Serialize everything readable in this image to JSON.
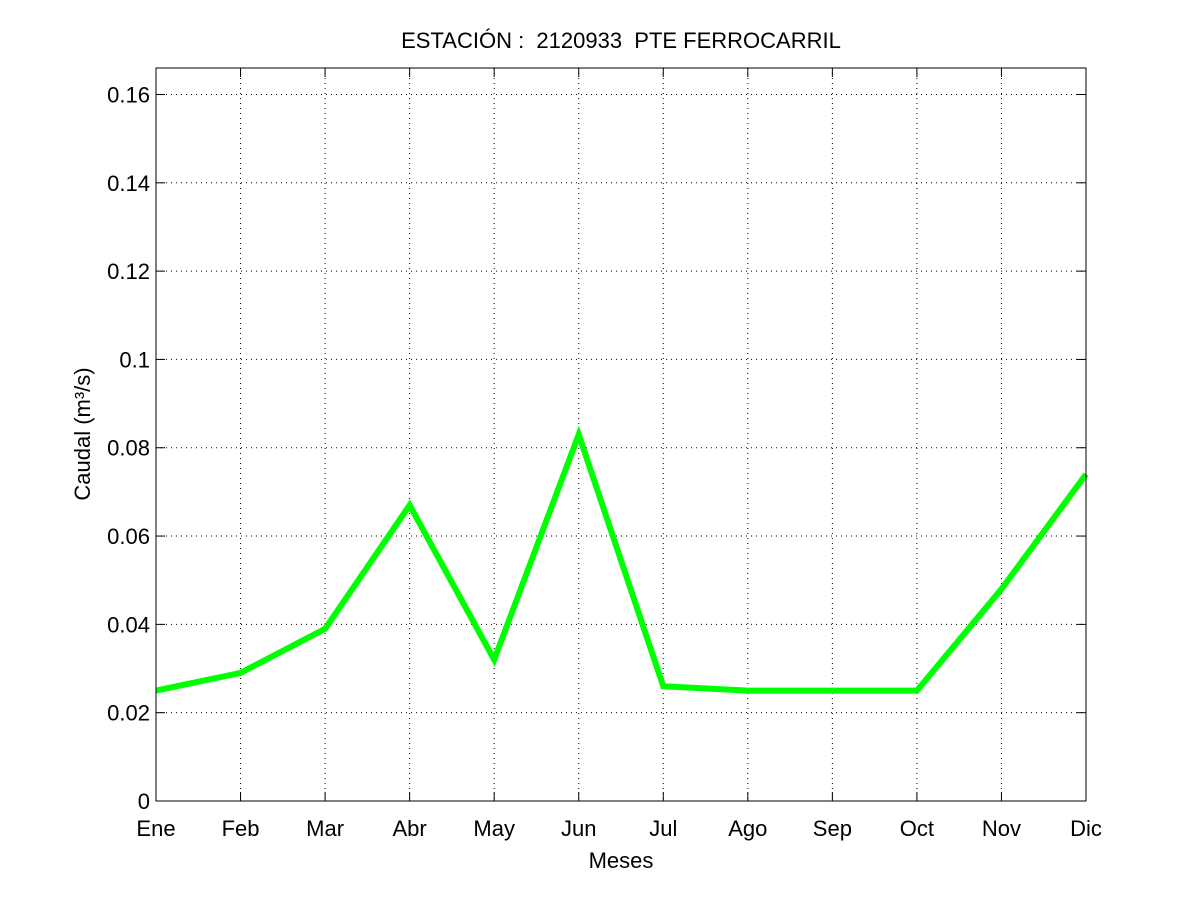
{
  "chart_data": {
    "type": "line",
    "title": "ESTACIÓN :  2120933  PTE FERROCARRIL",
    "xlabel": "Meses",
    "ylabel": "Caudal (m³/s)",
    "categories": [
      "Ene",
      "Feb",
      "Mar",
      "Abr",
      "May",
      "Jun",
      "Jul",
      "Ago",
      "Sep",
      "Oct",
      "Nov",
      "Dic"
    ],
    "series": [
      {
        "values": [
          0.025,
          0.029,
          0.039,
          0.067,
          0.032,
          0.083,
          0.026,
          0.025,
          0.025,
          0.025,
          0.048,
          0.074
        ],
        "color": "#00ff00"
      }
    ],
    "ylim": [
      0,
      0.166
    ],
    "yticks": [
      0,
      0.02,
      0.04,
      0.06,
      0.08,
      0.1,
      0.12,
      0.14,
      0.16
    ],
    "ytick_labels": [
      "0",
      "0.02",
      "0.04",
      "0.06",
      "0.08",
      "0.1",
      "0.12",
      "0.14",
      "0.16"
    ],
    "grid": true,
    "grid_style": "dotted"
  }
}
